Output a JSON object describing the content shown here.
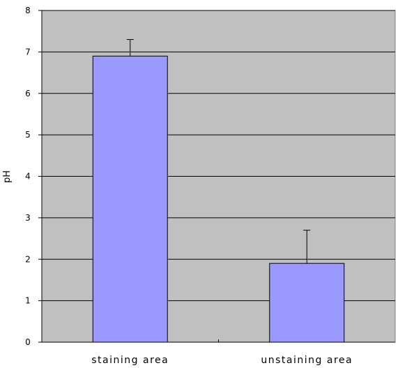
{
  "chart_data": {
    "type": "bar",
    "title": "",
    "xlabel": "",
    "ylabel": "pH",
    "categories": [
      "staining area",
      "unstaining area"
    ],
    "series": [
      {
        "values": [
          6.9,
          1.9
        ],
        "error_plus": [
          0.4,
          0.8
        ]
      }
    ],
    "ylim": [
      0,
      8
    ],
    "yticks": [
      0,
      1,
      2,
      3,
      4,
      5,
      6,
      7,
      8
    ],
    "grid": true,
    "legend": "none"
  },
  "colors": {
    "plot_background": "#c0c0c0",
    "bar_fill": "#9999ff",
    "bar_stroke": "#000000",
    "gridline": "#000000",
    "error_bar": "#000000"
  }
}
